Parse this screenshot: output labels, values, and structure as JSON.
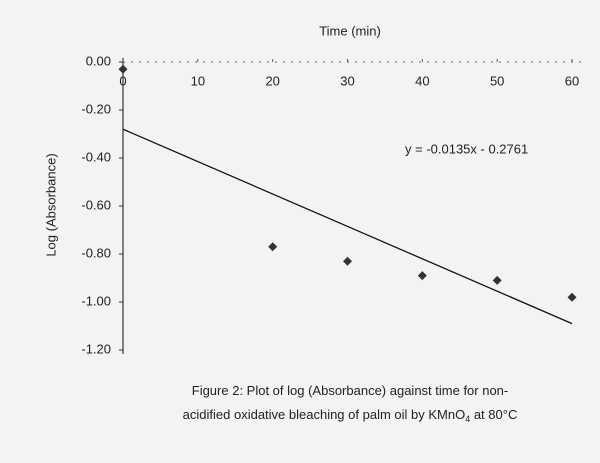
{
  "chart_data": {
    "type": "scatter",
    "x_label": "Time (min)",
    "y_label": "Log (Absorbance)",
    "x": [
      0,
      20,
      30,
      40,
      50,
      60
    ],
    "values": [
      -0.03,
      -0.77,
      -0.83,
      -0.89,
      -0.91,
      -0.98
    ],
    "color": "#333333",
    "trendline": {
      "x": [
        0,
        60
      ],
      "values": [
        -0.28,
        -1.09
      ],
      "color": "#111111"
    },
    "annotation": "y = -0.0135x - 0.2761",
    "xlim": [
      0,
      62
    ],
    "ylim": [
      -1.2,
      0
    ],
    "xticks": [
      0,
      10,
      20,
      30,
      40,
      50,
      60
    ],
    "yticks": [
      {
        "value": 0,
        "label": "0.00"
      },
      {
        "value": -0.2,
        "label": "-0.20"
      },
      {
        "value": -0.4,
        "label": "-0.40"
      },
      {
        "value": -0.6,
        "label": "-0.60"
      },
      {
        "value": -0.8,
        "label": "-0.80"
      },
      {
        "value": -1,
        "label": "-1.00"
      },
      {
        "value": -1.2,
        "label": "-1.20"
      }
    ],
    "caption": [
      "Figure 2: Plot of log (Absorbance) against time for non-",
      "acidified oxidative bleaching of palm oil by KMnO",
      "4",
      " at 80°C"
    ]
  }
}
